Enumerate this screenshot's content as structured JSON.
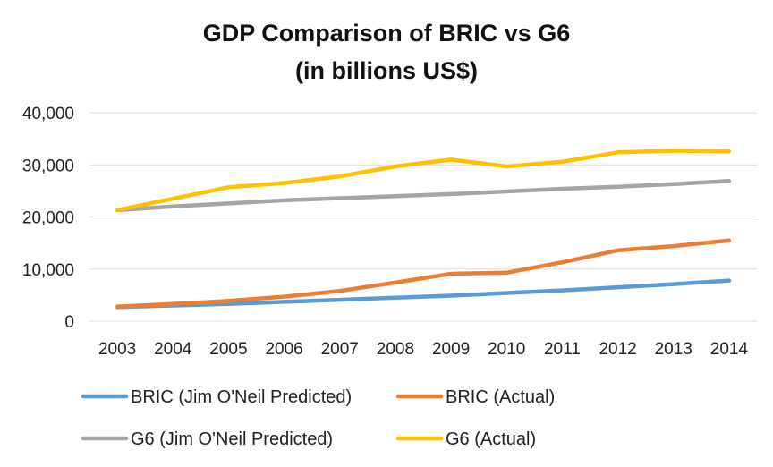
{
  "chart_data": {
    "type": "line",
    "title_lines": [
      "GDP Comparison of BRIC vs G6",
      "(in billions US$)"
    ],
    "categories": [
      "2003",
      "2004",
      "2005",
      "2006",
      "2007",
      "2008",
      "2009",
      "2010",
      "2011",
      "2012",
      "2013",
      "2014"
    ],
    "y_ticks": [
      "0",
      "10,000",
      "20,000",
      "30,000",
      "40,000"
    ],
    "ylim": [
      0,
      40000
    ],
    "grid": true,
    "legend_position": "bottom",
    "series": [
      {
        "name": "BRIC (Jim O'Neil Predicted)",
        "color": "#5B9BD5",
        "values": [
          2700,
          3000,
          3300,
          3700,
          4100,
          4500,
          4900,
          5400,
          5900,
          6500,
          7100,
          7800
        ]
      },
      {
        "name": "BRIC (Actual)",
        "color": "#ED7D31",
        "values": [
          2800,
          3300,
          3900,
          4700,
          5800,
          7400,
          9100,
          9300,
          11300,
          13600,
          14400,
          15500
        ]
      },
      {
        "name": "G6 (Jim O'Neil Predicted)",
        "color": "#A5A5A5",
        "values": [
          21300,
          22000,
          22600,
          23200,
          23600,
          24000,
          24400,
          24900,
          25400,
          25800,
          26300,
          26900
        ]
      },
      {
        "name": "G6 (Actual)",
        "color": "#FFC000",
        "values": [
          21300,
          23500,
          25700,
          26500,
          27800,
          29700,
          31000,
          29700,
          30600,
          32400,
          32700,
          32600
        ]
      }
    ]
  }
}
